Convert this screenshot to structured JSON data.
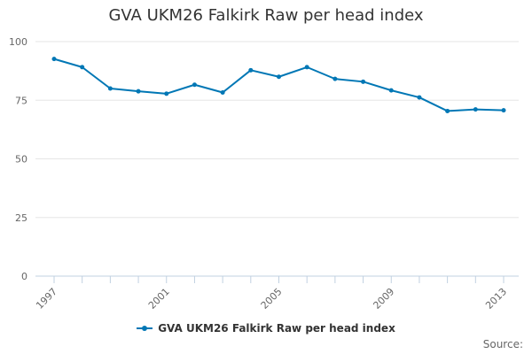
{
  "chart_data": {
    "type": "line",
    "title": "GVA UKM26 Falkirk Raw per head index",
    "xlabel": "",
    "ylabel": "",
    "x": [
      1997,
      1998,
      1999,
      2000,
      2001,
      2002,
      2003,
      2004,
      2005,
      2006,
      2007,
      2008,
      2009,
      2010,
      2011,
      2012,
      2013
    ],
    "x_tick_labels": [
      "1997",
      "2001",
      "2005",
      "2009",
      "2013"
    ],
    "y_tick_labels": [
      "0",
      "25",
      "50",
      "75",
      "100"
    ],
    "ylim": [
      0,
      100
    ],
    "series": [
      {
        "name": "GVA UKM26 Falkirk Raw per head index",
        "color": "#0077b5",
        "values": [
          92.6,
          89.1,
          80.0,
          78.8,
          77.8,
          81.6,
          78.3,
          87.8,
          85.0,
          89.1,
          84.1,
          82.9,
          79.2,
          76.2,
          70.4,
          71.1,
          70.7
        ]
      }
    ],
    "grid": true,
    "legend_position": "bottom-center"
  },
  "source_label": "Source:"
}
